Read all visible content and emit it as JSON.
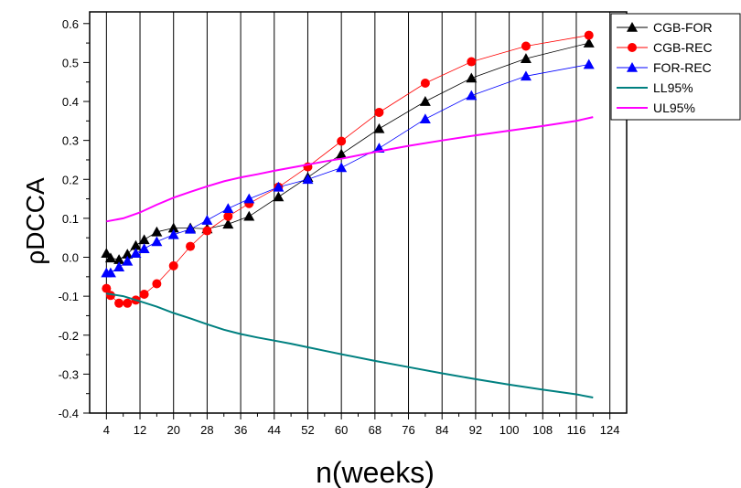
{
  "chart_data": {
    "type": "line",
    "title": "",
    "xlabel": "n(weeks)",
    "ylabel": "ρDCCA",
    "xlim": [
      0,
      128
    ],
    "ylim": [
      -0.4,
      0.63
    ],
    "x_ticks": [
      4,
      12,
      20,
      28,
      36,
      44,
      52,
      60,
      68,
      76,
      84,
      92,
      100,
      108,
      116,
      124
    ],
    "x_minor_step": 4,
    "y_ticks": [
      -0.4,
      -0.3,
      -0.2,
      -0.1,
      0.0,
      0.1,
      0.2,
      0.3,
      0.4,
      0.5,
      0.6
    ],
    "y_tick_labels": [
      "-0.4",
      "-0.3",
      "-0.2",
      "-0.1",
      "0.0",
      "0.1",
      "0.2",
      "0.3",
      "0.4",
      "0.5",
      "0.6"
    ],
    "grid": "vertical",
    "legend_position": "top-right",
    "series": [
      {
        "name": "CGB-FOR",
        "color": "#000000",
        "marker": "triangle",
        "x": [
          4,
          5,
          7,
          9,
          11,
          13,
          16,
          20,
          24,
          28,
          33,
          38,
          45,
          52,
          60,
          69,
          80,
          91,
          104,
          119
        ],
        "y": [
          0.01,
          -0.002,
          -0.006,
          0.008,
          0.03,
          0.045,
          0.065,
          0.075,
          0.075,
          0.073,
          0.085,
          0.105,
          0.155,
          0.205,
          0.265,
          0.33,
          0.4,
          0.46,
          0.51,
          0.55
        ]
      },
      {
        "name": "CGB-REC",
        "color": "#ff0000",
        "marker": "circle",
        "x": [
          4,
          5,
          7,
          9,
          11,
          13,
          16,
          20,
          24,
          28,
          33,
          38,
          45,
          52,
          60,
          69,
          80,
          91,
          104,
          119
        ],
        "y": [
          -0.08,
          -0.098,
          -0.118,
          -0.118,
          -0.11,
          -0.095,
          -0.068,
          -0.022,
          0.028,
          0.068,
          0.105,
          0.138,
          0.18,
          0.232,
          0.298,
          0.372,
          0.447,
          0.502,
          0.542,
          0.57
        ]
      },
      {
        "name": "FOR-REC",
        "color": "#0000ff",
        "marker": "triangle",
        "x": [
          4,
          5,
          7,
          9,
          11,
          13,
          16,
          20,
          24,
          28,
          33,
          38,
          45,
          52,
          60,
          69,
          80,
          91,
          104,
          119
        ],
        "y": [
          -0.04,
          -0.04,
          -0.025,
          -0.01,
          0.01,
          0.022,
          0.04,
          0.058,
          0.072,
          0.095,
          0.125,
          0.15,
          0.18,
          0.2,
          0.23,
          0.28,
          0.355,
          0.415,
          0.465,
          0.495
        ]
      },
      {
        "name": "LL95%",
        "color": "#008080",
        "marker": "none",
        "x": [
          4,
          8,
          12,
          16,
          20,
          24,
          28,
          32,
          36,
          40,
          44,
          48,
          52,
          56,
          60,
          68,
          76,
          84,
          92,
          100,
          108,
          116,
          120
        ],
        "y": [
          -0.093,
          -0.1,
          -0.113,
          -0.127,
          -0.143,
          -0.157,
          -0.172,
          -0.186,
          -0.197,
          -0.206,
          -0.214,
          -0.222,
          -0.231,
          -0.24,
          -0.249,
          -0.266,
          -0.282,
          -0.298,
          -0.313,
          -0.327,
          -0.34,
          -0.352,
          -0.36
        ]
      },
      {
        "name": "UL95%",
        "color": "#ff00ff",
        "marker": "none",
        "x": [
          4,
          8,
          12,
          16,
          20,
          24,
          28,
          32,
          36,
          40,
          44,
          48,
          52,
          56,
          60,
          68,
          76,
          84,
          92,
          100,
          108,
          116,
          120
        ],
        "y": [
          0.092,
          0.1,
          0.115,
          0.135,
          0.153,
          0.168,
          0.182,
          0.195,
          0.205,
          0.213,
          0.222,
          0.23,
          0.238,
          0.246,
          0.253,
          0.27,
          0.286,
          0.3,
          0.313,
          0.325,
          0.337,
          0.35,
          0.36
        ]
      }
    ]
  }
}
